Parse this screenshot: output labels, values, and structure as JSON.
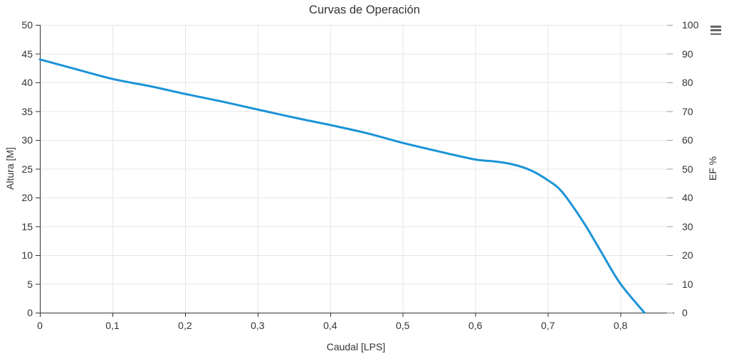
{
  "chart_data": {
    "type": "line",
    "title": "Curvas de Operación",
    "xlabel": "Caudal [LPS]",
    "ylabel_left": "Altura [M]",
    "ylabel_right": "EF %",
    "grid": true,
    "legend": "none",
    "x_axis": {
      "min": 0,
      "max": 0.872,
      "decimal_separator": ",",
      "tick_values": [
        0,
        0.1,
        0.2,
        0.3,
        0.4,
        0.5,
        0.6,
        0.7,
        0.8
      ],
      "tick_labels": [
        "0",
        "0,1",
        "0,2",
        "0,3",
        "0,4",
        "0,5",
        "0,6",
        "0,7",
        "0,8"
      ]
    },
    "y_axis_left": {
      "min": 0,
      "max": 50,
      "tick_values": [
        0,
        5,
        10,
        15,
        20,
        25,
        30,
        35,
        40,
        45,
        50
      ],
      "tick_labels": [
        "0",
        "5",
        "10",
        "15",
        "20",
        "25",
        "30",
        "35",
        "40",
        "45",
        "50"
      ]
    },
    "y_axis_right": {
      "min": 0,
      "max": 100,
      "tick_values": [
        0,
        10,
        20,
        30,
        40,
        50,
        60,
        70,
        80,
        90,
        100
      ],
      "tick_labels": [
        "0",
        "10",
        "20",
        "30",
        "40",
        "50",
        "60",
        "70",
        "80",
        "90",
        "100"
      ]
    },
    "series": [
      {
        "name": "Altura [M]",
        "type": "spline",
        "color": "#1a93d8",
        "points": [
          [
            0,
            44
          ],
          [
            0.05,
            42.3
          ],
          [
            0.1,
            40.6
          ],
          [
            0.15,
            39.4
          ],
          [
            0.2,
            38.0
          ],
          [
            0.25,
            36.7
          ],
          [
            0.3,
            35.3
          ],
          [
            0.35,
            33.9
          ],
          [
            0.4,
            32.6
          ],
          [
            0.45,
            31.2
          ],
          [
            0.5,
            29.5
          ],
          [
            0.55,
            28.0
          ],
          [
            0.6,
            26.6
          ],
          [
            0.625,
            26.3
          ],
          [
            0.65,
            25.8
          ],
          [
            0.675,
            24.8
          ],
          [
            0.7,
            23.0
          ],
          [
            0.72,
            20.9
          ],
          [
            0.75,
            15.5
          ],
          [
            0.775,
            10.2
          ],
          [
            0.8,
            5.0
          ],
          [
            0.833,
            0
          ]
        ]
      }
    ]
  },
  "colors": {
    "background": "#ffffff",
    "line": "#1a93d8",
    "grid": "#e6e6e6",
    "axis_line": "#333333",
    "tick": "#333333",
    "tick_right": "#999999",
    "text": "#333333",
    "menu_icon": "#666666"
  },
  "toolbar": {
    "context_menu_icon": "hamburger-menu-icon"
  }
}
